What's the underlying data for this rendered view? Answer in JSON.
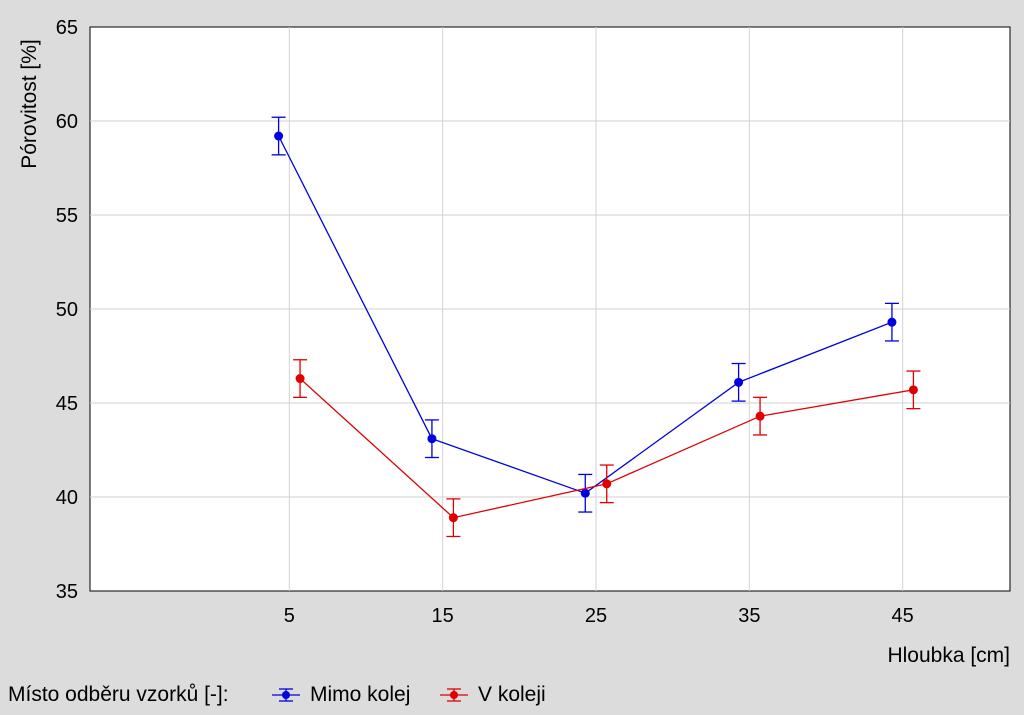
{
  "chart_data": {
    "type": "line",
    "xlabel": "Hloubka [cm]",
    "ylabel": "Pórovitost [%]",
    "x_ticks": [
      5,
      15,
      25,
      35,
      45
    ],
    "y_ticks": [
      35,
      40,
      45,
      50,
      55,
      60,
      65
    ],
    "xlim": [
      -8,
      52
    ],
    "ylim": [
      35,
      65
    ],
    "grid": true,
    "legend": {
      "title": "Místo odběru vzorků [-]:",
      "placement": "bottom-left"
    },
    "series": [
      {
        "name": "Mimo kolej",
        "color": "#0000e0",
        "x": [
          4.3,
          14.3,
          24.3,
          34.3,
          44.3
        ],
        "y": [
          59.2,
          43.1,
          40.2,
          46.1,
          49.3
        ],
        "error": [
          1.0,
          1.0,
          1.0,
          1.0,
          1.0
        ]
      },
      {
        "name": "V koleji",
        "color": "#e00000",
        "x": [
          5.7,
          15.7,
          25.7,
          35.7,
          45.7
        ],
        "y": [
          46.3,
          38.9,
          40.7,
          44.3,
          45.7
        ],
        "error": [
          1.0,
          1.0,
          1.0,
          1.0,
          1.0
        ]
      }
    ]
  }
}
